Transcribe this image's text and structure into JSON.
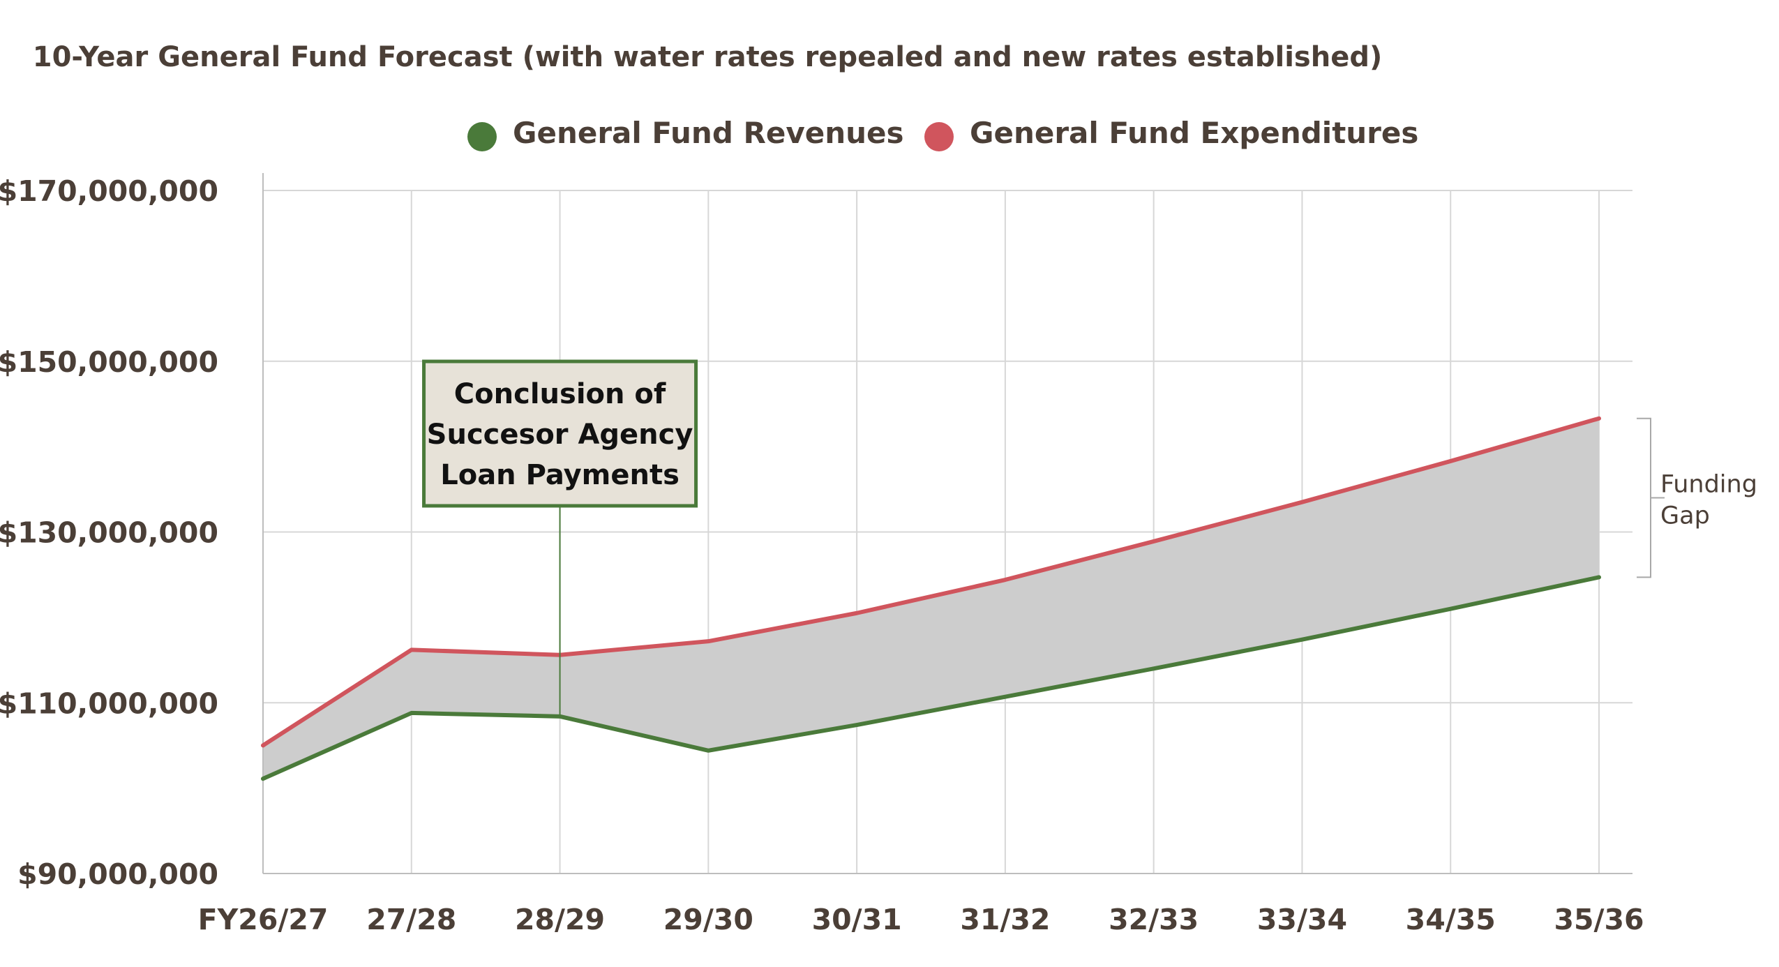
{
  "chart_data": {
    "type": "line",
    "title": "10-Year General Fund Forecast (with water rates repealed and new rates established)",
    "xlabel": "",
    "ylabel": "",
    "categories": [
      "FY26/27",
      "27/28",
      "28/29",
      "29/30",
      "30/31",
      "31/32",
      "32/33",
      "33/34",
      "34/35",
      "35/36"
    ],
    "series": [
      {
        "name": "General Fund Revenues",
        "color": "#4a7a3a",
        "values": [
          101100000,
          108800000,
          108400000,
          104400000,
          107400000,
          110700000,
          114000000,
          117400000,
          121000000,
          124700000
        ]
      },
      {
        "name": "General Fund Expenditures",
        "color": "#d0555d",
        "values": [
          105000000,
          116200000,
          115600000,
          117200000,
          120500000,
          124400000,
          128900000,
          133500000,
          138300000,
          143300000
        ]
      }
    ],
    "ylim": [
      90000000,
      170000000
    ],
    "yticks": [
      {
        "value": 90000000,
        "label": "$90,000,000"
      },
      {
        "value": 110000000,
        "label": "$110,000,000"
      },
      {
        "value": 130000000,
        "label": "$130,000,000"
      },
      {
        "value": 150000000,
        "label": "$150,000,000"
      },
      {
        "value": 170000000,
        "label": "$170,000,000"
      }
    ],
    "grid": true,
    "legend_position": "top-center",
    "gap_fill_color": "#cdcdcd",
    "annotations": [
      {
        "lines": [
          "Conclusion of",
          "Succesor Agency",
          "Loan Payments"
        ],
        "category": "28/29",
        "border_color": "#4a7a3a",
        "fill_color": "#e7e2d8"
      }
    ],
    "gap_label": [
      "Funding",
      "Gap"
    ]
  }
}
